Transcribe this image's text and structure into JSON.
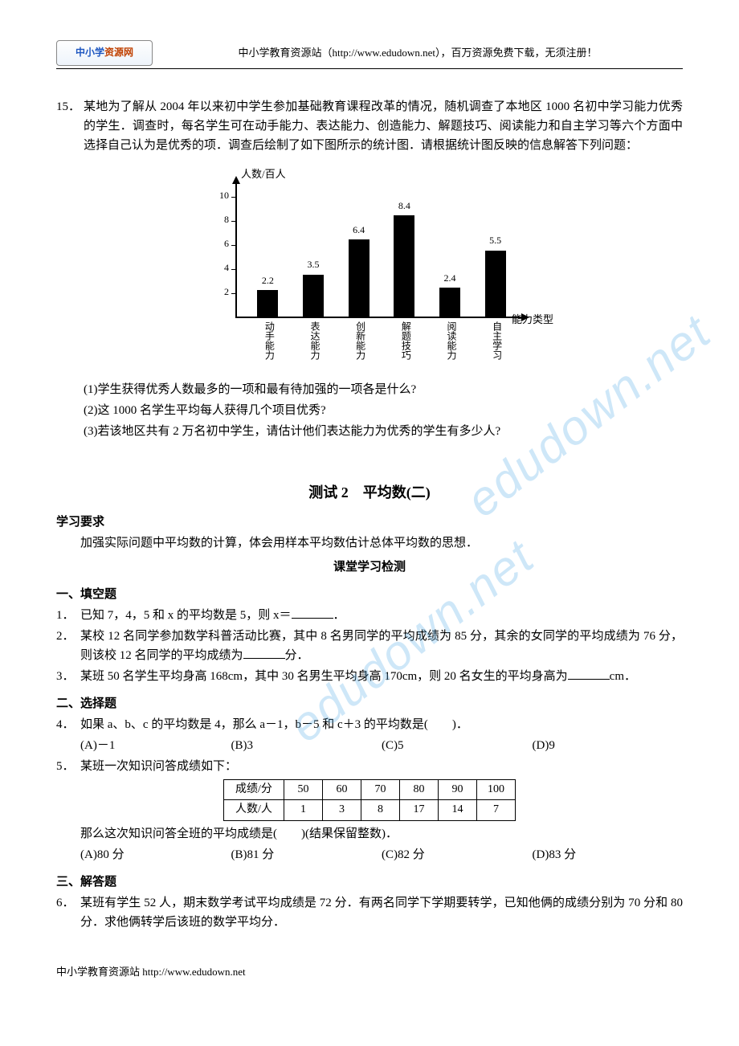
{
  "header": {
    "logo_left": "中小学",
    "logo_right": "资源网",
    "header_text": "中小学教育资源站（http://www.edudown.net），百万资源免费下载，无须注册！"
  },
  "q15": {
    "num": "15．",
    "text": "某地为了解从 2004 年以来初中学生参加基础教育课程改革的情况，随机调查了本地区 1000 名初中学习能力优秀的学生．调查时，每名学生可在动手能力、表达能力、创造能力、解题技巧、阅读能力和自主学习等六个方面中选择自己认为是优秀的项．调查后绘制了如下图所示的统计图．请根据统计图反映的信息解答下列问题："
  },
  "chart": {
    "type": "bar",
    "y_axis_title": "人数/百人",
    "x_axis_title": "能力类型",
    "y_ticks": [
      2,
      4,
      6,
      8,
      10
    ],
    "y_max": 10,
    "categories": [
      "动手能力",
      "表达能力",
      "创新能力",
      "解题技巧",
      "阅读能力",
      "自主学习"
    ],
    "values": [
      2.2,
      3.5,
      6.4,
      8.4,
      2.4,
      5.5
    ],
    "bar_color": "#000000",
    "background_color": "#ffffff"
  },
  "q15_sub": {
    "s1": "(1)学生获得优秀人数最多的一项和最有待加强的一项各是什么?",
    "s2": "(2)这 1000 名学生平均每人获得几个项目优秀?",
    "s3": "(3)若该地区共有 2 万名初中学生，请估计他们表达能力为优秀的学生有多少人?"
  },
  "test2": {
    "title": "测试 2　平均数(二)",
    "req_head": "学习要求",
    "req_text": "加强实际问题中平均数的计算，体会用样本平均数估计总体平均数的思想．",
    "class_test": "课堂学习检测"
  },
  "fill_head": "一、填空题",
  "q1": {
    "num": "1．",
    "text_a": "已知 7，4，5 和 x 的平均数是 5，则 x＝",
    "text_b": "．"
  },
  "q2": {
    "num": "2．",
    "text_a": "某校 12 名同学参加数学科普活动比赛，其中 8 名男同学的平均成绩为 85 分，其余的女同学的平均成绩为 76 分，则该校 12 名同学的平均成绩为",
    "text_b": "分．"
  },
  "q3": {
    "num": "3．",
    "text_a": "某班 50 名学生平均身高 168cm，其中 30 名男生平均身高 170cm，则 20 名女生的平均身高为",
    "text_b": "cm．"
  },
  "choice_head": "二、选择题",
  "q4": {
    "num": "4．",
    "text": "如果 a、b、c 的平均数是 4，那么 a－1，b－5 和 c＋3 的平均数是(　　)．",
    "opts": {
      "A": "(A)－1",
      "B": "(B)3",
      "C": "(C)5",
      "D": "(D)9"
    }
  },
  "q5": {
    "num": "5．",
    "text": "某班一次知识问答成绩如下：",
    "table": {
      "row1": [
        "成绩/分",
        "50",
        "60",
        "70",
        "80",
        "90",
        "100"
      ],
      "row2": [
        "人数/人",
        "1",
        "3",
        "8",
        "17",
        "14",
        "7"
      ]
    },
    "text2_a": "那么这次知识问答全班的平均成绩是(",
    "text2_b": ")(结果保留整数)．",
    "opts": {
      "A": "(A)80 分",
      "B": "(B)81 分",
      "C": "(C)82 分",
      "D": "(D)83 分"
    }
  },
  "answer_head": "三、解答题",
  "q6": {
    "num": "6．",
    "text": "某班有学生 52 人，期末数学考试平均成绩是 72 分．有两名同学下学期要转学，已知他俩的成绩分别为 70 分和 80 分．求他俩转学后该班的数学平均分．"
  },
  "footer": "中小学教育资源站  http://www.edudown.net",
  "watermark": "edudown.net"
}
